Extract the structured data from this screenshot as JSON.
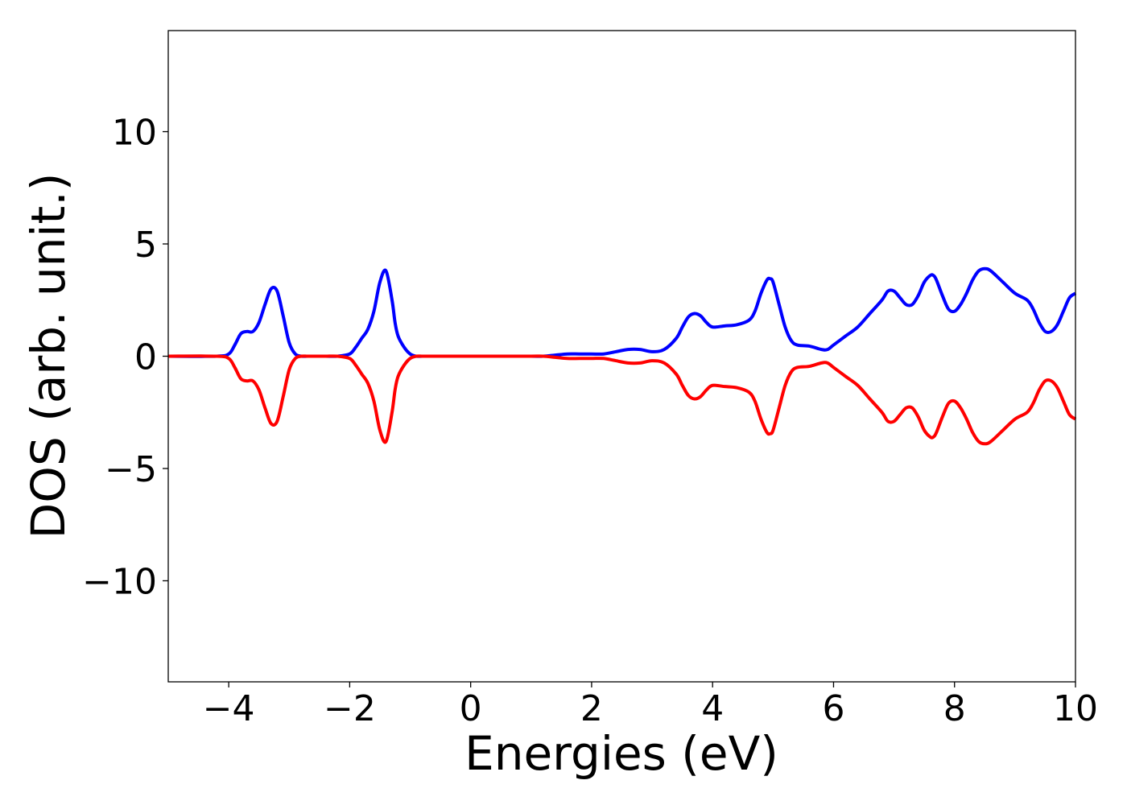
{
  "chart_data": {
    "type": "line",
    "title": "",
    "xlabel": "Energies (eV)",
    "ylabel": "DOS (arb. unit.)",
    "xlim": [
      -5,
      10
    ],
    "ylim": [
      -14.5,
      14.5
    ],
    "xticks": [
      -4,
      -2,
      0,
      2,
      4,
      6,
      8,
      10
    ],
    "xtick_labels": [
      "−4",
      "−2",
      "0",
      "2",
      "4",
      "6",
      "8",
      "10"
    ],
    "yticks": [
      -10,
      -5,
      0,
      5,
      10
    ],
    "ytick_labels": [
      "−10",
      "−5",
      "0",
      "5",
      "10"
    ],
    "grid": false,
    "legend": "none",
    "series": [
      {
        "color": "#0000ff",
        "x": [
          -5.0,
          -4.2,
          -4.0,
          -3.9,
          -3.8,
          -3.7,
          -3.6,
          -3.5,
          -3.4,
          -3.3,
          -3.2,
          -3.1,
          -3.0,
          -2.9,
          -2.8,
          -2.7,
          -2.6,
          -2.4,
          -2.2,
          -2.0,
          -1.9,
          -1.8,
          -1.7,
          -1.6,
          -1.5,
          -1.4,
          -1.3,
          -1.25,
          -1.2,
          -1.1,
          -1.0,
          -0.9,
          -0.8,
          -0.7,
          -0.6,
          -0.5,
          0.0,
          0.5,
          1.0,
          1.2,
          1.4,
          1.6,
          1.8,
          2.0,
          2.2,
          2.4,
          2.6,
          2.8,
          3.0,
          3.2,
          3.4,
          3.5,
          3.6,
          3.7,
          3.8,
          3.9,
          4.0,
          4.2,
          4.4,
          4.6,
          4.7,
          4.8,
          4.9,
          4.95,
          5.0,
          5.1,
          5.2,
          5.3,
          5.4,
          5.6,
          5.8,
          5.9,
          6.0,
          6.2,
          6.4,
          6.6,
          6.8,
          6.9,
          7.0,
          7.1,
          7.2,
          7.3,
          7.4,
          7.5,
          7.6,
          7.65,
          7.7,
          7.8,
          7.9,
          8.0,
          8.1,
          8.2,
          8.3,
          8.4,
          8.5,
          8.6,
          8.8,
          9.0,
          9.2,
          9.3,
          9.4,
          9.5,
          9.6,
          9.7,
          9.8,
          9.9,
          10.0
        ],
        "y": [
          0.0,
          0.0,
          0.1,
          0.5,
          1.0,
          1.1,
          1.1,
          1.5,
          2.3,
          3.0,
          2.9,
          1.8,
          0.6,
          0.1,
          0.0,
          0.0,
          0.0,
          0.0,
          0.0,
          0.1,
          0.4,
          0.8,
          1.2,
          2.0,
          3.3,
          3.8,
          2.5,
          1.5,
          0.9,
          0.4,
          0.1,
          0.0,
          0.0,
          0.0,
          0.0,
          0.0,
          0.0,
          0.0,
          0.0,
          0.0,
          0.05,
          0.1,
          0.1,
          0.1,
          0.1,
          0.2,
          0.3,
          0.3,
          0.2,
          0.3,
          0.8,
          1.3,
          1.75,
          1.9,
          1.8,
          1.5,
          1.3,
          1.35,
          1.4,
          1.6,
          2.0,
          2.8,
          3.4,
          3.45,
          3.3,
          2.3,
          1.3,
          0.7,
          0.5,
          0.45,
          0.3,
          0.3,
          0.5,
          0.9,
          1.3,
          1.9,
          2.5,
          2.9,
          2.9,
          2.6,
          2.3,
          2.3,
          2.7,
          3.3,
          3.6,
          3.6,
          3.4,
          2.7,
          2.1,
          2.0,
          2.3,
          2.8,
          3.4,
          3.8,
          3.9,
          3.8,
          3.3,
          2.8,
          2.5,
          2.1,
          1.5,
          1.1,
          1.1,
          1.4,
          2.0,
          2.6,
          2.8
        ]
      },
      {
        "color": "#ff0000",
        "x": [
          -5.0,
          -4.2,
          -4.0,
          -3.9,
          -3.8,
          -3.7,
          -3.6,
          -3.5,
          -3.4,
          -3.3,
          -3.2,
          -3.1,
          -3.0,
          -2.9,
          -2.8,
          -2.7,
          -2.6,
          -2.4,
          -2.2,
          -2.0,
          -1.9,
          -1.8,
          -1.7,
          -1.6,
          -1.5,
          -1.4,
          -1.3,
          -1.25,
          -1.2,
          -1.1,
          -1.0,
          -0.9,
          -0.8,
          -0.7,
          -0.6,
          -0.5,
          0.0,
          0.5,
          1.0,
          1.2,
          1.4,
          1.6,
          1.8,
          2.0,
          2.2,
          2.4,
          2.6,
          2.8,
          3.0,
          3.2,
          3.4,
          3.5,
          3.6,
          3.7,
          3.8,
          3.9,
          4.0,
          4.2,
          4.4,
          4.6,
          4.7,
          4.8,
          4.9,
          4.95,
          5.0,
          5.1,
          5.2,
          5.3,
          5.4,
          5.6,
          5.8,
          5.9,
          6.0,
          6.2,
          6.4,
          6.6,
          6.8,
          6.9,
          7.0,
          7.1,
          7.2,
          7.3,
          7.4,
          7.5,
          7.6,
          7.65,
          7.7,
          7.8,
          7.9,
          8.0,
          8.1,
          8.2,
          8.3,
          8.4,
          8.5,
          8.6,
          8.8,
          9.0,
          9.2,
          9.3,
          9.4,
          9.5,
          9.6,
          9.7,
          9.8,
          9.9,
          10.0
        ],
        "y": [
          0.0,
          0.0,
          -0.1,
          -0.5,
          -1.0,
          -1.1,
          -1.1,
          -1.5,
          -2.3,
          -3.0,
          -2.9,
          -1.8,
          -0.6,
          -0.1,
          0.0,
          0.0,
          0.0,
          0.0,
          0.0,
          -0.1,
          -0.4,
          -0.8,
          -1.2,
          -2.0,
          -3.3,
          -3.8,
          -2.5,
          -1.5,
          -0.9,
          -0.4,
          -0.1,
          0.0,
          0.0,
          0.0,
          0.0,
          0.0,
          0.0,
          0.0,
          0.0,
          0.0,
          -0.05,
          -0.1,
          -0.1,
          -0.1,
          -0.1,
          -0.2,
          -0.3,
          -0.3,
          -0.2,
          -0.3,
          -0.8,
          -1.3,
          -1.75,
          -1.9,
          -1.8,
          -1.5,
          -1.3,
          -1.35,
          -1.4,
          -1.6,
          -2.0,
          -2.8,
          -3.4,
          -3.45,
          -3.3,
          -2.3,
          -1.3,
          -0.7,
          -0.5,
          -0.45,
          -0.3,
          -0.3,
          -0.5,
          -0.9,
          -1.3,
          -1.9,
          -2.5,
          -2.9,
          -2.9,
          -2.6,
          -2.3,
          -2.3,
          -2.7,
          -3.3,
          -3.6,
          -3.6,
          -3.4,
          -2.7,
          -2.1,
          -2.0,
          -2.3,
          -2.8,
          -3.4,
          -3.8,
          -3.9,
          -3.8,
          -3.3,
          -2.8,
          -2.5,
          -2.1,
          -1.5,
          -1.1,
          -1.1,
          -1.4,
          -2.0,
          -2.6,
          -2.8
        ]
      }
    ]
  }
}
